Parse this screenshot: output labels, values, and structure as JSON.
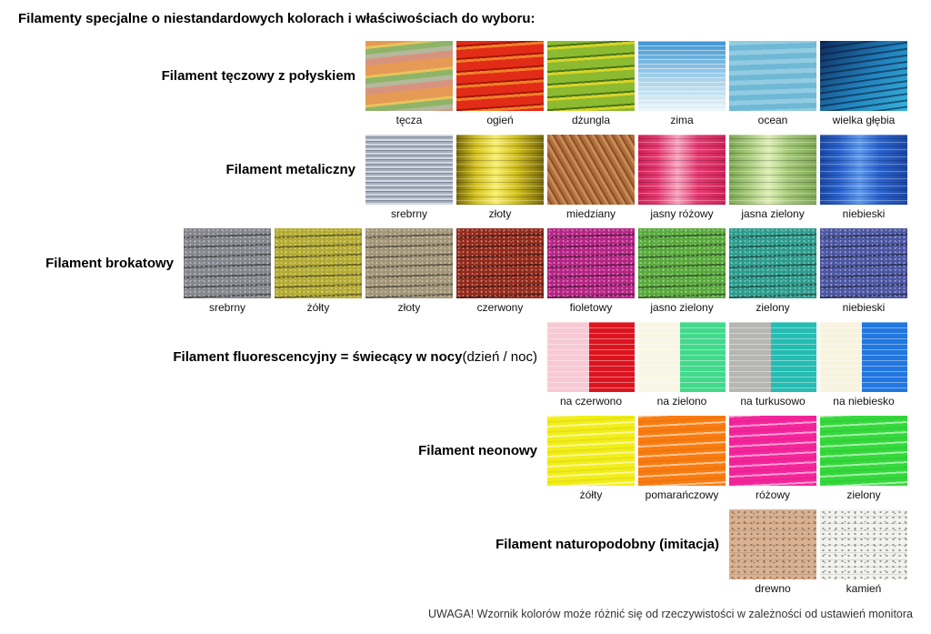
{
  "page": {
    "title": "Filamenty specjalne o niestandardowych kolorach i właściwościach do wyboru:",
    "footer_note": "UWAGA! Wzornik kolorów może różnić się od rzeczywistości w zależności od ustawień monitora"
  },
  "filament_rows": [
    {
      "label": "Filament tęczowy z połyskiem",
      "note": "",
      "swatches": [
        {
          "name": "tęcza",
          "pattern": "strands-multi",
          "colors": [
            "#e59a55",
            "#8fb468",
            "#d8937f",
            "#b4b89c",
            "#e8c35c"
          ]
        },
        {
          "name": "ogień",
          "pattern": "strands-duo",
          "colors": [
            "#e22c18",
            "#f07f28",
            "#a81608"
          ]
        },
        {
          "name": "dżungla",
          "pattern": "strands-duo",
          "colors": [
            "#8cba30",
            "#d8d428",
            "#47761a"
          ]
        },
        {
          "name": "zima",
          "pattern": "fade-down",
          "colors": [
            "#3f94d2",
            "#a9d3ea",
            "#eaf4fa"
          ]
        },
        {
          "name": "ocean",
          "pattern": "strands-soft",
          "colors": [
            "#6fb9d6",
            "#93cce2"
          ]
        },
        {
          "name": "wielka głębia",
          "pattern": "deep",
          "colors": [
            "#0d2a5e",
            "#2283be",
            "#38b4dc"
          ]
        }
      ]
    },
    {
      "label": "Filament metaliczny",
      "note": "",
      "swatches": [
        {
          "name": "srebrny",
          "pattern": "metal-fine",
          "colors": [
            "#a6aebe",
            "#d2d8e2",
            "#7e8898"
          ]
        },
        {
          "name": "złoty",
          "pattern": "metal",
          "colors": [
            "#d2c01e",
            "#f8ee6a",
            "#796908"
          ]
        },
        {
          "name": "miedziany",
          "pattern": "metal-diag",
          "colors": [
            "#ad6c3c",
            "#c98a54",
            "#8a4f26"
          ]
        },
        {
          "name": "jasny różowy",
          "pattern": "metal",
          "colors": [
            "#e63a72",
            "#f9a2bd",
            "#d02258"
          ]
        },
        {
          "name": "jasna zielony",
          "pattern": "metal",
          "colors": [
            "#a5c878",
            "#ddeeb4",
            "#7ea852"
          ]
        },
        {
          "name": "niebieski",
          "pattern": "metal",
          "colors": [
            "#2a62cc",
            "#5e9aec",
            "#1c48a4"
          ]
        }
      ]
    },
    {
      "label": "Filament brokatowy",
      "note": "",
      "swatches": [
        {
          "name": "srebrny",
          "pattern": "glitter",
          "colors": [
            "#84858d"
          ]
        },
        {
          "name": "żółty",
          "pattern": "glitter",
          "colors": [
            "#b3aa30"
          ]
        },
        {
          "name": "złoty",
          "pattern": "glitter",
          "colors": [
            "#a29476"
          ]
        },
        {
          "name": "czerwony",
          "pattern": "glitter",
          "colors": [
            "#93291a"
          ]
        },
        {
          "name": "fioletowy",
          "pattern": "glitter",
          "colors": [
            "#b52384"
          ]
        },
        {
          "name": "jasno zielony",
          "pattern": "glitter",
          "colors": [
            "#57a93a"
          ]
        },
        {
          "name": "zielony",
          "pattern": "glitter",
          "colors": [
            "#2b9c8c"
          ]
        },
        {
          "name": "niebieski",
          "pattern": "glitter",
          "colors": [
            "#4b55a2"
          ]
        }
      ]
    },
    {
      "label": "Filament fluorescencyjny = świecący w nocy",
      "note": "(dzień / noc)",
      "swatches": [
        {
          "name": "na czerwono",
          "pattern": "duo",
          "colors": [
            "#f7c9d4",
            "#dc1420"
          ]
        },
        {
          "name": "na zielono",
          "pattern": "duo",
          "colors": [
            "#f8f6e4",
            "#43d98c"
          ]
        },
        {
          "name": "na turkusowo",
          "pattern": "duo",
          "colors": [
            "#b6b6b2",
            "#25bcb2"
          ]
        },
        {
          "name": "na niebiesko",
          "pattern": "duo",
          "colors": [
            "#f7f3df",
            "#2277e0"
          ]
        }
      ]
    },
    {
      "label": "Filament neonowy",
      "note": "",
      "swatches": [
        {
          "name": "żółty",
          "pattern": "neon",
          "colors": [
            "#f2ee18"
          ]
        },
        {
          "name": "pomarańczowy",
          "pattern": "neon",
          "colors": [
            "#fa7c10"
          ]
        },
        {
          "name": "różowy",
          "pattern": "neon",
          "colors": [
            "#f5259b"
          ]
        },
        {
          "name": "zielony",
          "pattern": "neon",
          "colors": [
            "#35d93c"
          ]
        }
      ]
    },
    {
      "label": "Filament naturopodobny (imitacja)",
      "note": "",
      "swatches": [
        {
          "name": "drewno",
          "pattern": "speckle",
          "colors": [
            "#d9b294",
            "#8f6848"
          ]
        },
        {
          "name": "kamień",
          "pattern": "speckle",
          "colors": [
            "#f2f2ef",
            "#85857f"
          ]
        }
      ]
    }
  ]
}
